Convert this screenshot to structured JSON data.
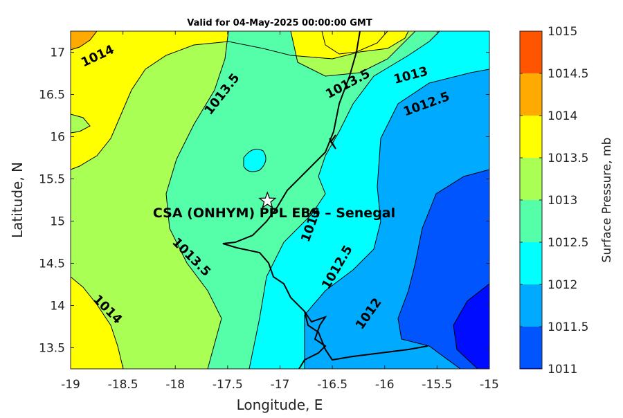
{
  "chart_data": {
    "type": "contour",
    "title": "Valid for 04-May-2025 00:00:00 GMT",
    "xlabel": "Longitude, E",
    "ylabel": "Latitude, N",
    "xlim": [
      -19,
      -15
    ],
    "ylim": [
      13.25,
      17.25
    ],
    "x_ticks": [
      -19,
      -18.5,
      -18,
      -17.5,
      -17,
      -16.5,
      -16,
      -15.5,
      -15
    ],
    "y_ticks": [
      13.5,
      14,
      14.5,
      15,
      15.5,
      16,
      16.5,
      17
    ],
    "colorbar": {
      "label": "Surface Pressure, mb",
      "levels": [
        1011,
        1011.5,
        1012,
        1012.5,
        1013,
        1013.5,
        1014,
        1014.5,
        1015
      ],
      "colors": [
        "#0000ff",
        "#0055ff",
        "#00aaff",
        "#00ffff",
        "#55ffaa",
        "#aaff55",
        "#ffff00",
        "#ffaa00",
        "#ff5500"
      ]
    },
    "contour_labels": [
      {
        "text": "1014",
        "lon": -18.74,
        "lat": 16.95,
        "angle": -25
      },
      {
        "text": "1013.5",
        "lon": -17.55,
        "lat": 16.5,
        "angle": -52
      },
      {
        "text": "1013.5",
        "lon": -16.35,
        "lat": 16.62,
        "angle": -28
      },
      {
        "text": "1013",
        "lon": -15.75,
        "lat": 16.72,
        "angle": -15
      },
      {
        "text": "1012.5",
        "lon": -15.6,
        "lat": 16.38,
        "angle": -20
      },
      {
        "text": "1013.5",
        "lon": -17.85,
        "lat": 14.57,
        "angle": 45
      },
      {
        "text": "1014",
        "lon": -18.65,
        "lat": 13.95,
        "angle": 45
      },
      {
        "text": "1013",
        "lon": -16.7,
        "lat": 14.95,
        "angle": -70
      },
      {
        "text": "1012.5",
        "lon": -16.45,
        "lat": 14.45,
        "angle": -60
      },
      {
        "text": "1012",
        "lon": -16.15,
        "lat": 13.9,
        "angle": -55
      }
    ],
    "station": {
      "name": "CSA (ONHYM) PPL EBS – Senegal",
      "lon": -17.12,
      "lat": 15.24,
      "marker": "star"
    }
  }
}
